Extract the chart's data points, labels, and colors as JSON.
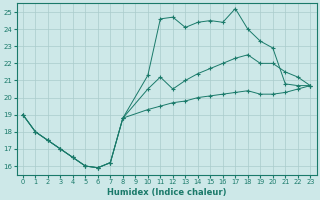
{
  "background_color": "#cde8e8",
  "grid_color": "#aacccc",
  "line_color": "#1a7a6a",
  "xlabel": "Humidex (Indice chaleur)",
  "xlim": [
    -0.5,
    23.5
  ],
  "ylim": [
    15.5,
    25.5
  ],
  "yticks": [
    16,
    17,
    18,
    19,
    20,
    21,
    22,
    23,
    24,
    25
  ],
  "xticks": [
    0,
    1,
    2,
    3,
    4,
    5,
    6,
    7,
    8,
    9,
    10,
    11,
    12,
    13,
    14,
    15,
    16,
    17,
    18,
    19,
    20,
    21,
    22,
    23
  ],
  "s1_x": [
    0,
    1,
    2,
    3,
    4,
    5,
    6,
    7,
    8,
    10,
    11,
    12,
    13,
    14,
    15,
    16,
    17,
    18,
    19,
    20,
    21,
    22,
    23
  ],
  "s1_y": [
    19.0,
    18.0,
    17.5,
    17.0,
    16.5,
    16.0,
    15.9,
    16.2,
    18.8,
    21.3,
    24.6,
    24.7,
    24.1,
    24.4,
    24.5,
    24.4,
    25.2,
    24.0,
    23.3,
    22.9,
    20.8,
    20.7,
    20.7
  ],
  "s2_x": [
    0,
    1,
    2,
    3,
    4,
    5,
    6,
    7,
    8,
    10,
    11,
    12,
    13,
    14,
    15,
    16,
    17,
    18,
    19,
    20,
    21,
    22,
    23
  ],
  "s2_y": [
    19.0,
    18.0,
    17.5,
    17.0,
    16.5,
    16.0,
    15.9,
    16.2,
    18.8,
    20.5,
    21.2,
    20.5,
    21.0,
    21.4,
    21.7,
    22.0,
    22.3,
    22.5,
    22.0,
    22.0,
    21.5,
    21.2,
    20.7
  ],
  "s3_x": [
    0,
    1,
    2,
    3,
    4,
    5,
    6,
    7,
    8,
    10,
    11,
    12,
    13,
    14,
    15,
    16,
    17,
    18,
    19,
    20,
    21,
    22,
    23
  ],
  "s3_y": [
    19.0,
    18.0,
    17.5,
    17.0,
    16.5,
    16.0,
    15.9,
    16.2,
    18.8,
    19.3,
    19.5,
    19.7,
    19.8,
    20.0,
    20.1,
    20.2,
    20.3,
    20.4,
    20.2,
    20.2,
    20.3,
    20.5,
    20.7
  ]
}
